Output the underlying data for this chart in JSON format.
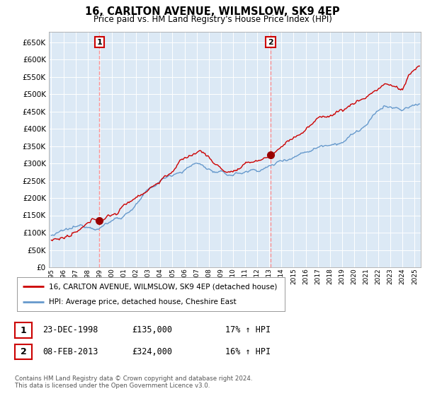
{
  "title": "16, CARLTON AVENUE, WILMSLOW, SK9 4EP",
  "subtitle": "Price paid vs. HM Land Registry's House Price Index (HPI)",
  "background_color": "#ffffff",
  "chart_bg_color": "#dce9f5",
  "grid_color": "#ffffff",
  "line1_color": "#cc0000",
  "line2_color": "#6699cc",
  "sale1_date_x": 1998.97,
  "sale1_price": 135000,
  "sale2_date_x": 2013.1,
  "sale2_price": 324000,
  "vline_color": "#ff8888",
  "marker_color": "#990000",
  "legend_label1": "16, CARLTON AVENUE, WILMSLOW, SK9 4EP (detached house)",
  "legend_label2": "HPI: Average price, detached house, Cheshire East",
  "table_row1": [
    "1",
    "23-DEC-1998",
    "£135,000",
    "17% ↑ HPI"
  ],
  "table_row2": [
    "2",
    "08-FEB-2013",
    "£324,000",
    "16% ↑ HPI"
  ],
  "footnote": "Contains HM Land Registry data © Crown copyright and database right 2024.\nThis data is licensed under the Open Government Licence v3.0.",
  "xmin": 1994.8,
  "xmax": 2025.5,
  "ylim": [
    0,
    680000
  ],
  "yticks": [
    0,
    50000,
    100000,
    150000,
    200000,
    250000,
    300000,
    350000,
    400000,
    450000,
    500000,
    550000,
    600000,
    650000
  ]
}
